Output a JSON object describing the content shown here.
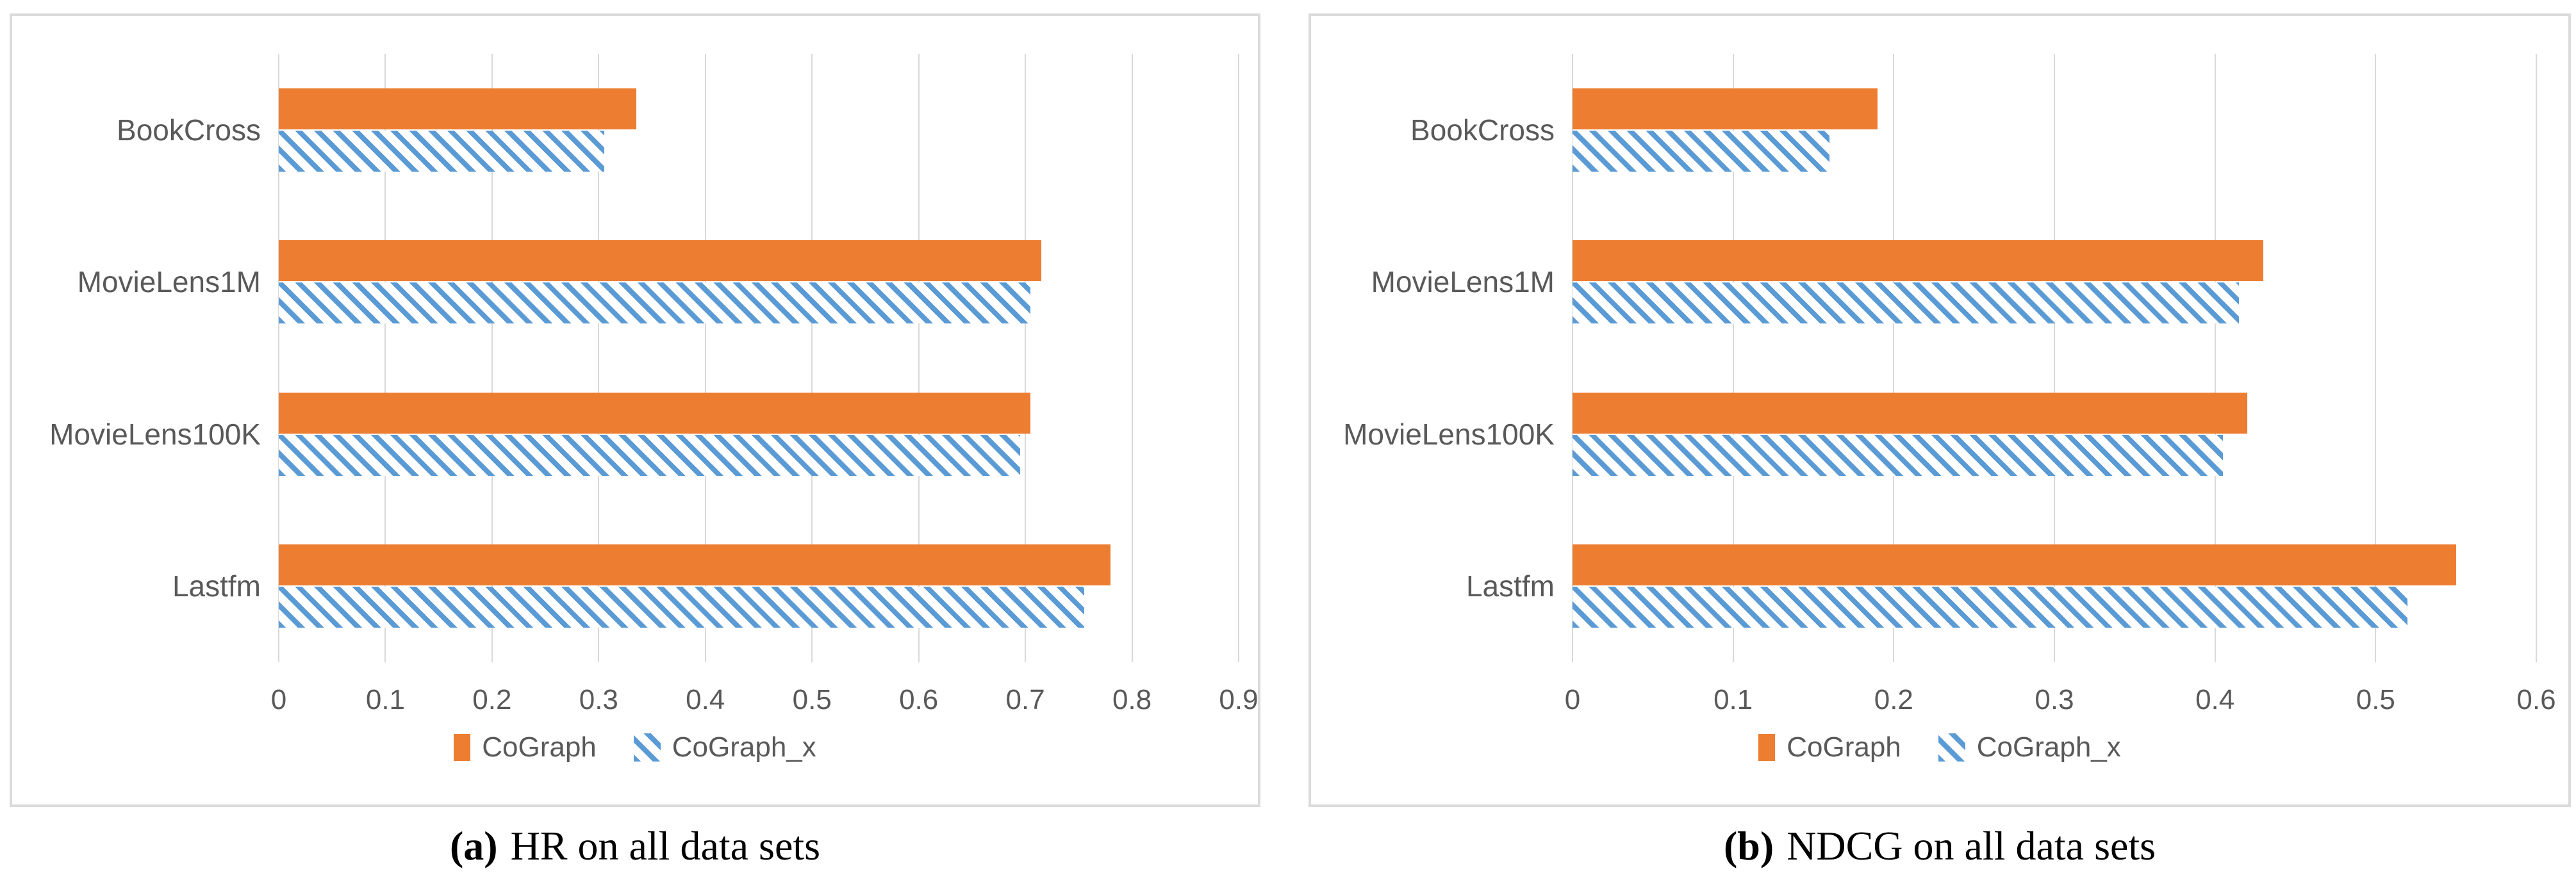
{
  "figure": {
    "background": "#ffffff",
    "panel_border_color": "#dbdbdb",
    "gridline_color": "#d9d9d9",
    "axis_label_color": "#595959",
    "caption_color": "#000000"
  },
  "colors": {
    "cograph_orange": "#ED7D31",
    "cograph_x_blue": "#5B9BD5"
  },
  "legend": {
    "items": [
      {
        "label": "CoGraph",
        "marker": "orange-solid-square"
      },
      {
        "label": "CoGraph_x",
        "marker": "blue-hatched-square"
      }
    ],
    "position": "bottom-center"
  },
  "chart_data": [
    {
      "type": "bar",
      "orientation": "horizontal",
      "caption_tag": "(a)",
      "caption_label": "HR on all data sets",
      "categories": [
        "BookCross",
        "MovieLens1M",
        "MovieLens100K",
        "Lastfm"
      ],
      "series": [
        {
          "name": "CoGraph",
          "style": "solid",
          "color": "#ED7D31",
          "values": [
            0.335,
            0.715,
            0.705,
            0.78
          ]
        },
        {
          "name": "CoGraph_x",
          "style": "hatch",
          "color": "#5B9BD5",
          "values": [
            0.305,
            0.705,
            0.695,
            0.755
          ]
        }
      ],
      "xlabel": "",
      "ylabel": "",
      "xlim": [
        0,
        0.9
      ],
      "xtick_labels": [
        "0",
        "0.1",
        "0.2",
        "0.3",
        "0.4",
        "0.5",
        "0.6",
        "0.7",
        "0.8",
        "0.9"
      ],
      "grid": true,
      "legend_position": "bottom"
    },
    {
      "type": "bar",
      "orientation": "horizontal",
      "caption_tag": "(b)",
      "caption_label": "NDCG on all data sets",
      "categories": [
        "BookCross",
        "MovieLens1M",
        "MovieLens100K",
        "Lastfm"
      ],
      "series": [
        {
          "name": "CoGraph",
          "style": "solid",
          "color": "#ED7D31",
          "values": [
            0.19,
            0.43,
            0.42,
            0.55
          ]
        },
        {
          "name": "CoGraph_x",
          "style": "hatch",
          "color": "#5B9BD5",
          "values": [
            0.16,
            0.415,
            0.405,
            0.52
          ]
        }
      ],
      "xlabel": "",
      "ylabel": "",
      "xlim": [
        0,
        0.6
      ],
      "xtick_labels": [
        "0",
        "0.1",
        "0.2",
        "0.3",
        "0.4",
        "0.5",
        "0.6"
      ],
      "grid": true,
      "legend_position": "bottom"
    }
  ]
}
